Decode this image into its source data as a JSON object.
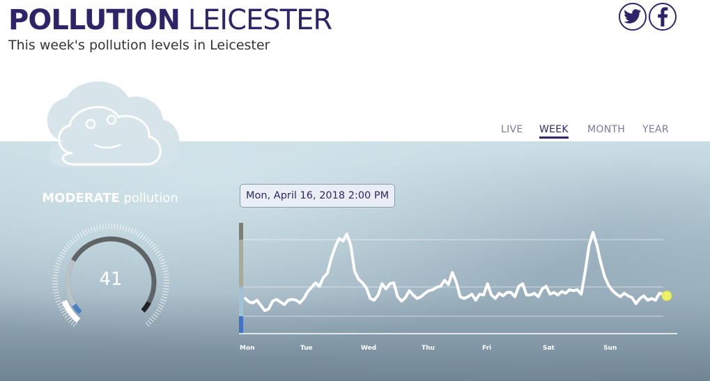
{
  "header": {
    "title_bold": "POLLUTION",
    "title_light": "LEICESTER",
    "subtitle": "This week's pollution levels in Leicester"
  },
  "social": {
    "twitter_icon": "twitter-icon",
    "facebook_icon": "facebook-icon"
  },
  "tabs": [
    {
      "label": "LIVE",
      "active": false
    },
    {
      "label": "WEEK",
      "active": true
    },
    {
      "label": "MONTH",
      "active": false
    },
    {
      "label": "YEAR",
      "active": false
    }
  ],
  "status": {
    "level": "MODERATE",
    "suffix": "pollution",
    "mascot_icon": "smiling-cloud-icon"
  },
  "gauge": {
    "value": "41"
  },
  "tooltip": {
    "datetime": "Mon, April 16, 2018 2:00 PM"
  },
  "colors": {
    "brand": "#2e2569",
    "line": "#ffffff",
    "marker": "#eef06a"
  },
  "chart_data": {
    "type": "line",
    "x_labels": [
      "Mon",
      "Tue",
      "Wed",
      "Thu",
      "Fri",
      "Sat",
      "Sun"
    ],
    "grid": true,
    "series": [
      {
        "values": [
          38,
          34,
          33,
          36,
          30,
          24,
          26,
          35,
          37,
          34,
          31,
          36,
          37,
          36,
          33,
          38,
          46,
          51,
          56,
          52,
          62,
          67,
          84,
          97,
          107,
          104,
          112,
          99,
          69,
          60,
          56,
          50,
          38,
          36,
          42,
          55,
          49,
          55,
          56,
          40,
          35,
          39,
          47,
          42,
          38,
          40,
          44,
          47,
          48,
          51,
          52,
          59,
          54,
          68,
          57,
          40,
          38,
          40,
          43,
          36,
          43,
          42,
          55,
          42,
          38,
          44,
          41,
          45,
          45,
          40,
          52,
          55,
          42,
          42,
          44,
          40,
          49,
          52,
          43,
          45,
          42,
          46,
          44,
          48,
          47,
          48,
          43,
          69,
          99,
          114,
          99,
          79,
          63,
          53,
          47,
          43,
          40,
          44,
          41,
          39,
          32,
          38,
          41,
          36,
          38,
          36,
          44,
          43
        ],
        "color": "#ffffff"
      }
    ],
    "current_value": 41
  }
}
